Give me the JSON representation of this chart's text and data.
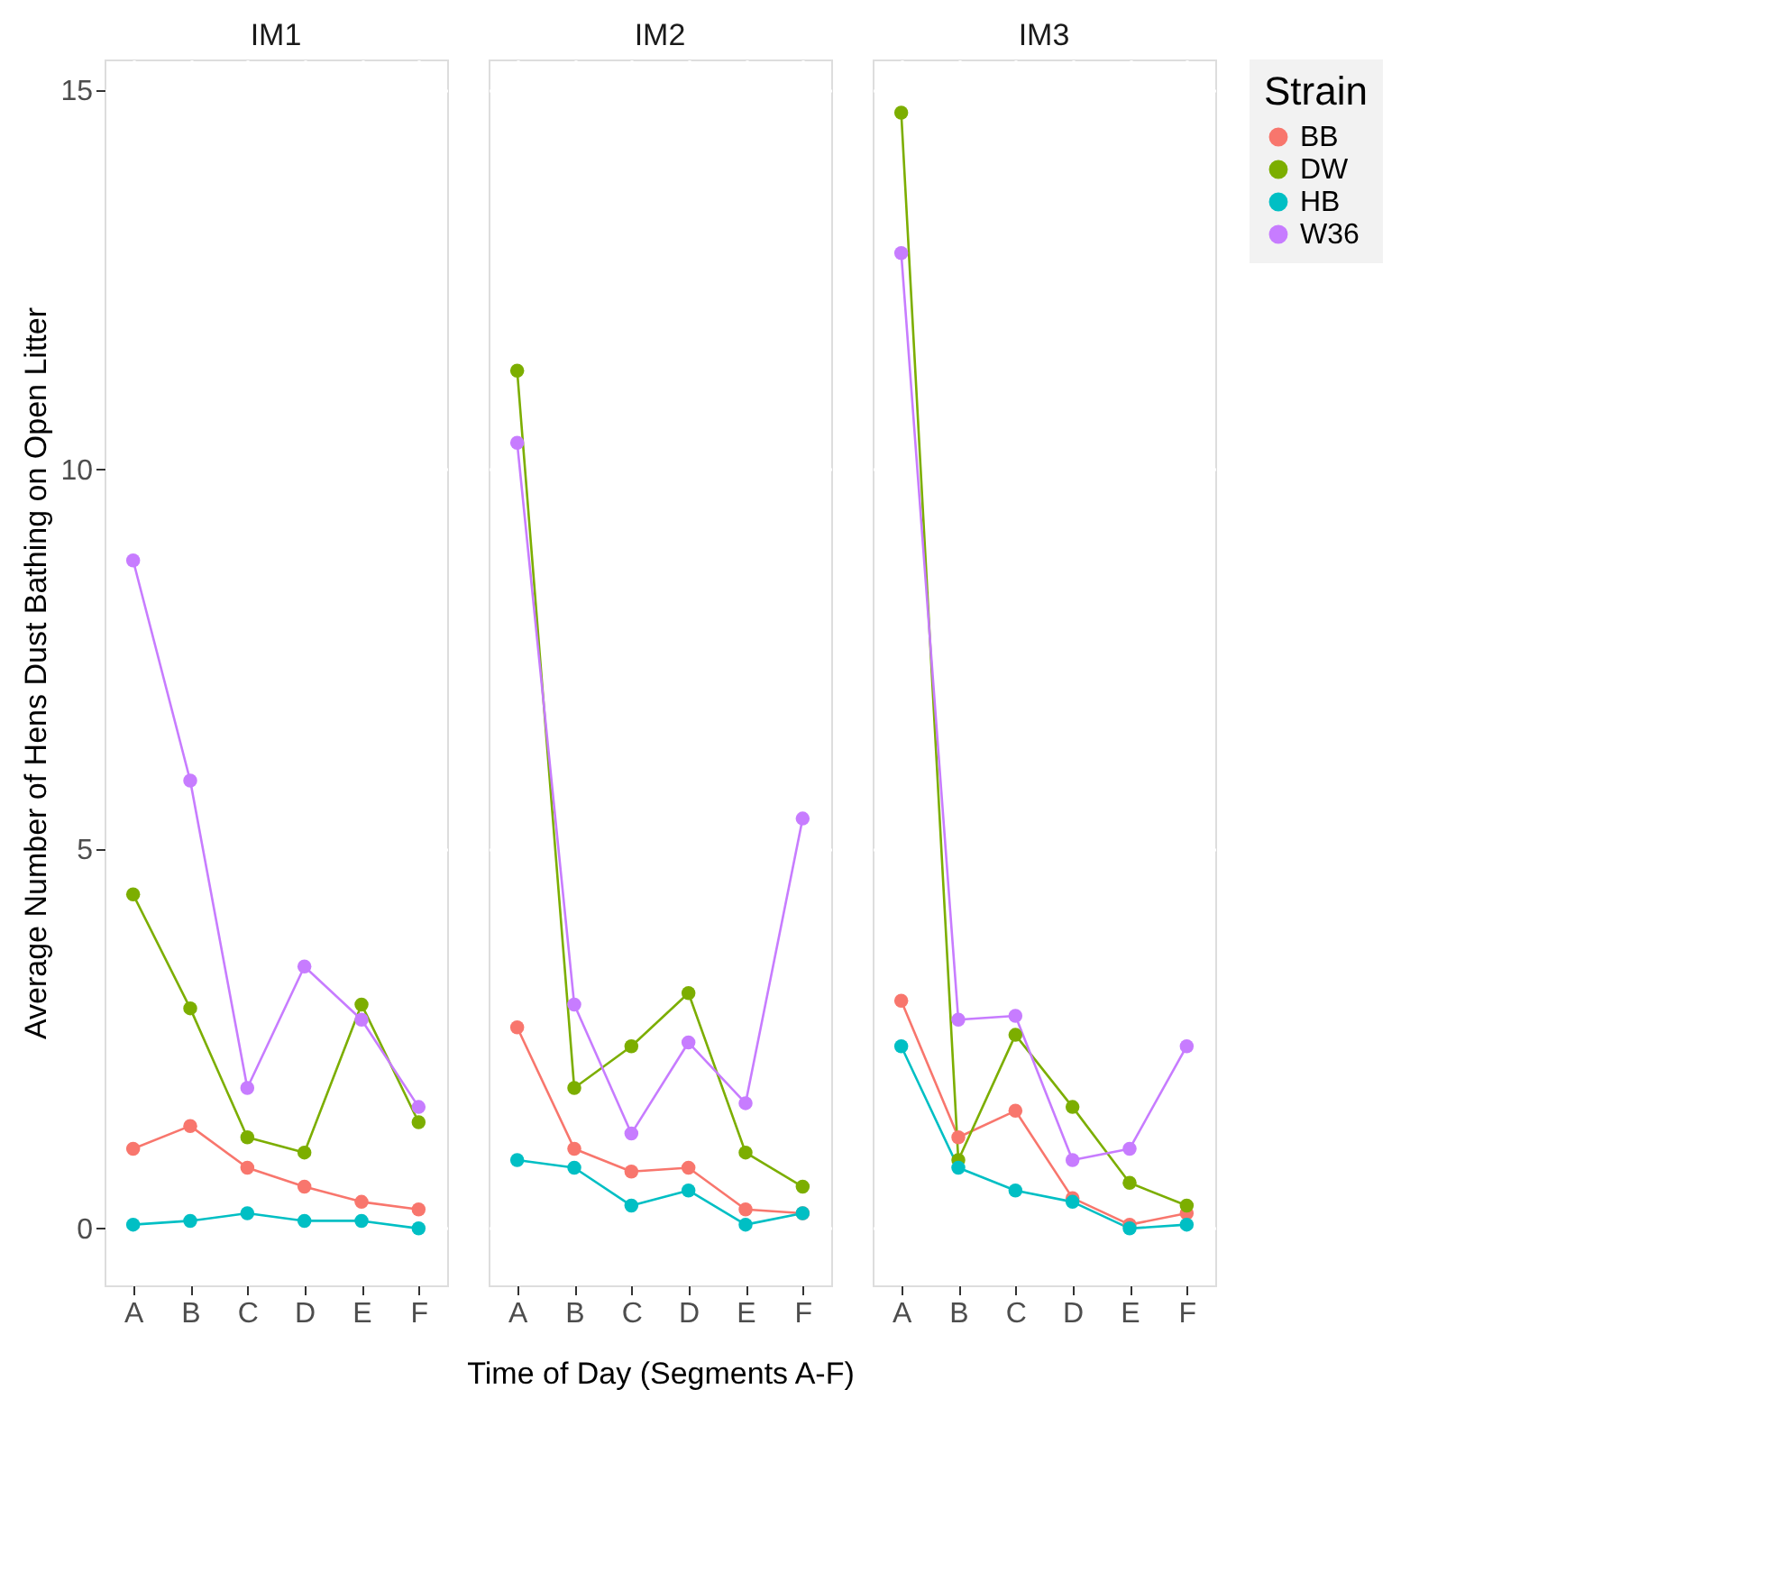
{
  "chart_data": [
    {
      "type": "line",
      "title": "IM1",
      "ylabel": "Average Number of Hens Dust Bathing on Open Litter",
      "categories": [
        "A",
        "B",
        "C",
        "D",
        "E",
        "F"
      ],
      "ylim": [
        -0.75,
        15.4
      ],
      "yticks": [
        0,
        5,
        10,
        15
      ],
      "grid": true,
      "marker": "circle",
      "legend": "right",
      "series": [
        {
          "name": "BB",
          "color": "#f8766d",
          "values": [
            1.05,
            1.35,
            0.8,
            0.55,
            0.35,
            0.25
          ]
        },
        {
          "name": "DW",
          "color": "#7cae00",
          "values": [
            4.4,
            2.9,
            1.2,
            1.0,
            2.95,
            1.4
          ]
        },
        {
          "name": "HB",
          "color": "#00bfc4",
          "values": [
            0.05,
            0.1,
            0.2,
            0.1,
            0.1,
            0.0
          ]
        },
        {
          "name": "W36",
          "color": "#c77cff",
          "values": [
            8.8,
            5.9,
            1.85,
            3.45,
            2.75,
            1.6
          ]
        }
      ]
    },
    {
      "type": "line",
      "title": "IM2",
      "xlabel": "Time of Day (Segments A-F)",
      "categories": [
        "A",
        "B",
        "C",
        "D",
        "E",
        "F"
      ],
      "ylim": [
        -0.75,
        15.4
      ],
      "yticks": [
        0,
        5,
        10,
        15
      ],
      "tick_labels": "x",
      "grid": true,
      "marker": "circle",
      "legend": "right",
      "series": [
        {
          "name": "BB",
          "color": "#f8766d",
          "values": [
            2.65,
            1.05,
            0.75,
            0.8,
            0.25,
            0.2
          ]
        },
        {
          "name": "DW",
          "color": "#7cae00",
          "values": [
            11.3,
            1.85,
            2.4,
            3.1,
            1.0,
            0.55
          ]
        },
        {
          "name": "HB",
          "color": "#00bfc4",
          "values": [
            0.9,
            0.8,
            0.3,
            0.5,
            0.05,
            0.2
          ]
        },
        {
          "name": "W36",
          "color": "#c77cff",
          "values": [
            10.35,
            2.95,
            1.25,
            2.45,
            1.65,
            5.4
          ]
        }
      ]
    },
    {
      "type": "line",
      "title": "IM3",
      "legend_title": "Strain",
      "categories": [
        "A",
        "B",
        "C",
        "D",
        "E",
        "F"
      ],
      "ylim": [
        -0.75,
        15.4
      ],
      "yticks": [
        0,
        5,
        10,
        15
      ],
      "tick_labels": "x",
      "grid": true,
      "marker": "circle",
      "legend": "right",
      "series": [
        {
          "name": "BB",
          "color": "#f8766d",
          "values": [
            3.0,
            1.2,
            1.55,
            0.4,
            0.05,
            0.2
          ]
        },
        {
          "name": "DW",
          "color": "#7cae00",
          "values": [
            14.7,
            0.9,
            2.55,
            1.6,
            0.6,
            0.3
          ]
        },
        {
          "name": "HB",
          "color": "#00bfc4",
          "values": [
            2.4,
            0.8,
            0.5,
            0.35,
            0.0,
            0.05
          ]
        },
        {
          "name": "W36",
          "color": "#c77cff",
          "values": [
            12.85,
            2.75,
            2.8,
            0.9,
            1.05,
            2.4
          ]
        }
      ]
    }
  ]
}
